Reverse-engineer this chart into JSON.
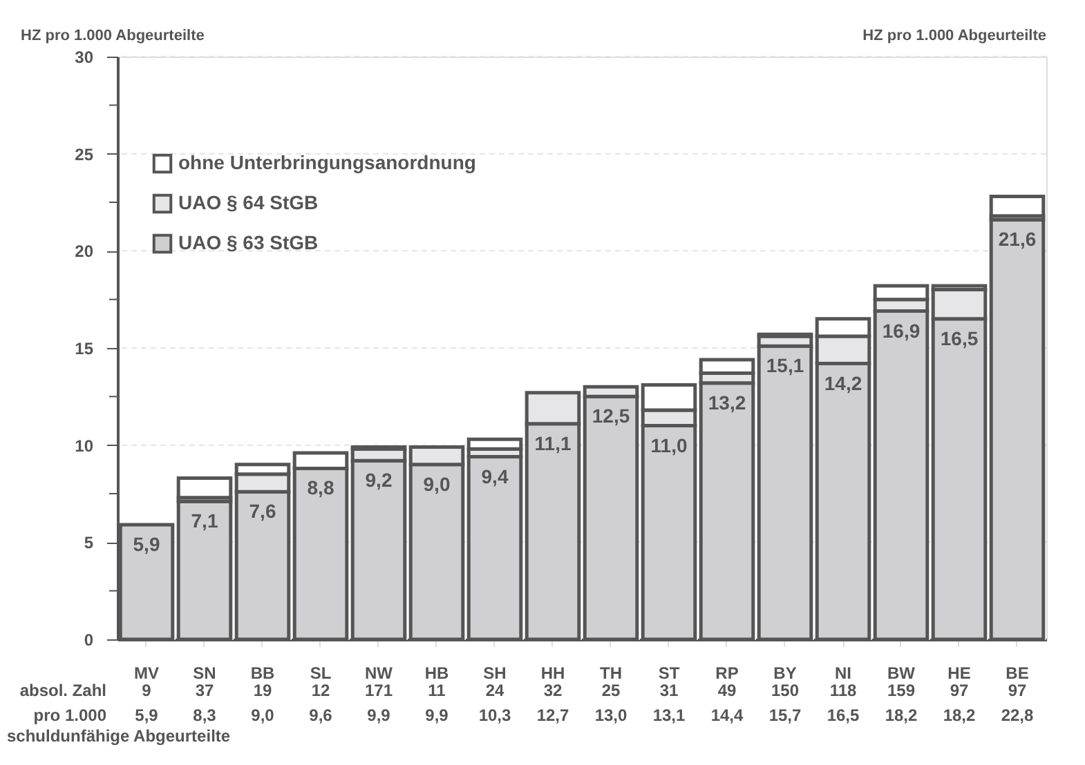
{
  "chart_data": {
    "type": "bar",
    "stacked": true,
    "ylabel": "HZ pro 1.000 Abgeurteilte",
    "y2label": "HZ pro 1.000 Abgeurteilte",
    "categories": [
      "MV",
      "SN",
      "BB",
      "SL",
      "NW",
      "HB",
      "SH",
      "HH",
      "TH",
      "ST",
      "RP",
      "BY",
      "NI",
      "BW",
      "HE",
      "BE"
    ],
    "series": [
      {
        "name": "UAO § 63 StGB",
        "color": "#d0d0d2",
        "values": [
          5.9,
          7.1,
          7.6,
          8.8,
          9.2,
          9.0,
          9.4,
          11.1,
          12.5,
          11.0,
          13.2,
          15.1,
          14.2,
          16.9,
          16.5,
          21.6
        ],
        "value_labels": [
          "5,9",
          "7,1",
          "7,6",
          "8,8",
          "9,2",
          "9,0",
          "9,4",
          "11,1",
          "12,5",
          "11,0",
          "13,2",
          "15,1",
          "14,2",
          "16,9",
          "16,5",
          "21,6"
        ]
      },
      {
        "name": "UAO § 64 StGB",
        "color": "#e6e6e8",
        "values": [
          0,
          0.2,
          0.9,
          0,
          0.6,
          0.9,
          0.4,
          1.6,
          0.5,
          0.8,
          0.5,
          0.5,
          1.4,
          0.6,
          1.5,
          0.2
        ]
      },
      {
        "name": "ohne Unterbringungsanordnung",
        "color": "#ffffff",
        "values": [
          0,
          1.0,
          0.5,
          0.8,
          0.1,
          0,
          0.5,
          0,
          0,
          1.3,
          0.7,
          0.1,
          0.9,
          0.7,
          0.2,
          1.0
        ]
      }
    ],
    "annotations": [
      "absol. Zahl",
      "pro 1.000",
      "schuldunfähige Abgeurteilte",
      "9",
      "37",
      "19",
      "12",
      "171",
      "11",
      "24",
      "32",
      "25",
      "31",
      "49",
      "150",
      "118",
      "159",
      "97",
      "97",
      "5,9",
      "8,3",
      "9,0",
      "9,6",
      "9,9",
      "9,9",
      "10,3",
      "12,7",
      "13,0",
      "13,1",
      "14,4",
      "15,7",
      "16,5",
      "18,2",
      "18,2",
      "22,8"
    ],
    "ylim": [
      0,
      30
    ],
    "yticks": [
      0,
      {
        "value": 2.5,
        "label": null
      },
      5,
      {
        "value": 7.5,
        "label": null
      },
      10,
      {
        "value": 12.5,
        "label": null
      },
      15,
      {
        "value": 17.5,
        "label": null
      },
      20,
      {
        "value": 22.5,
        "label": null
      },
      25,
      {
        "value": 27.5,
        "label": null
      },
      30
    ],
    "grid": "y",
    "legend": "top left"
  }
}
